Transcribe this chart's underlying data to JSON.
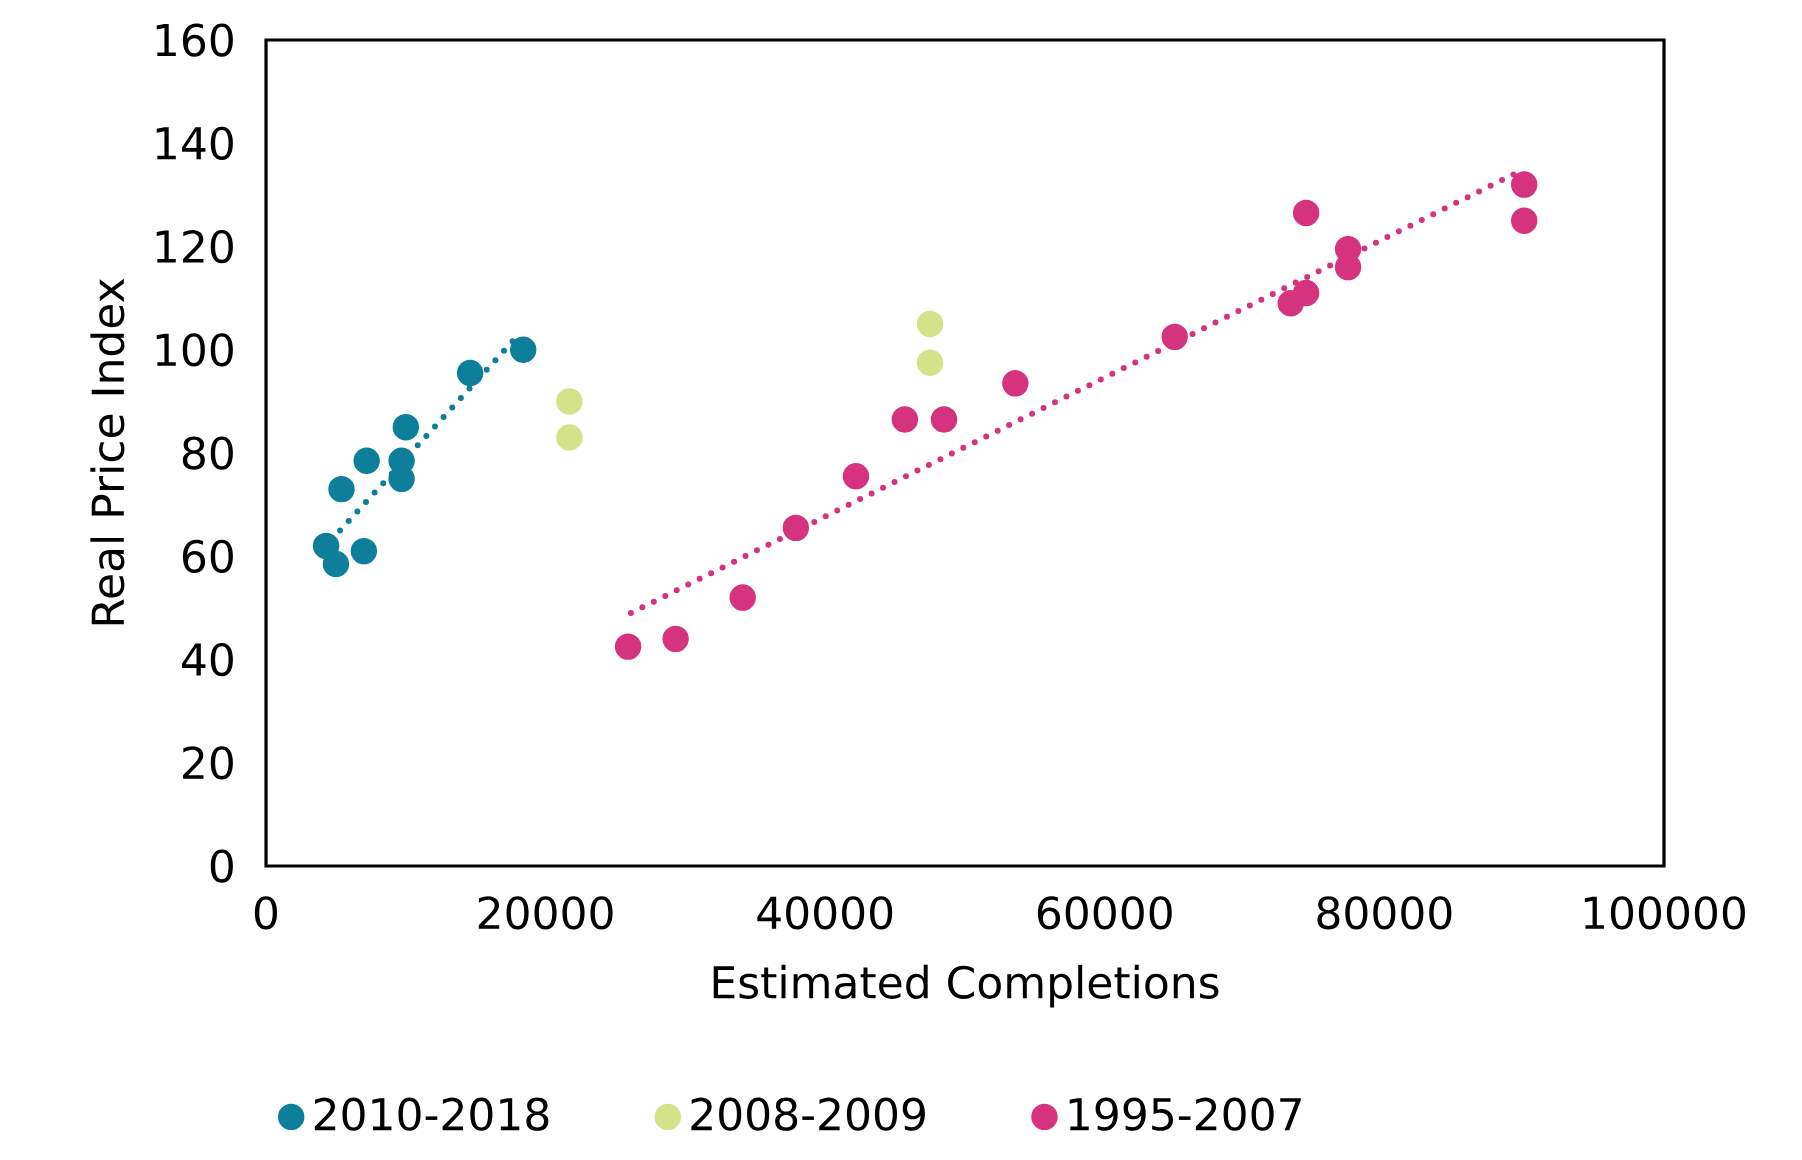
{
  "chart_data": {
    "type": "scatter",
    "xlabel": "Estimated Completions",
    "ylabel": "Real Price Index",
    "xlim": [
      0,
      100000
    ],
    "xticks": [
      0,
      20000,
      40000,
      60000,
      80000,
      100000
    ],
    "ylim": [
      0,
      160
    ],
    "yticks": [
      0,
      20,
      40,
      60,
      80,
      100,
      120,
      140,
      160
    ],
    "grid": false,
    "legend": "bottom",
    "marker": "circle",
    "series": [
      {
        "name": "2010-2018",
        "color": "#0e7f9a",
        "x": [
          4300,
          5000,
          7000,
          5400,
          7200,
          9700,
          9700,
          10000,
          14600,
          18400
        ],
        "values": [
          62,
          58.5,
          61,
          73,
          78.5,
          78.5,
          75,
          85,
          95.5,
          100
        ]
      },
      {
        "name": "2008-2009",
        "color": "#d4e38a",
        "x": [
          21700,
          21700,
          47500,
          47500
        ],
        "values": [
          90,
          83,
          105,
          97.5
        ]
      },
      {
        "name": "1995-2007",
        "color": "#d6337e",
        "x": [
          25900,
          29300,
          34100,
          37900,
          42200,
          45700,
          48500,
          53600,
          65000,
          73300,
          74400,
          74400,
          77400,
          77400,
          90000,
          90000
        ],
        "values": [
          42.5,
          44,
          52,
          65.5,
          75.5,
          86.5,
          86.5,
          93.5,
          102.5,
          109,
          111,
          126.5,
          119.5,
          116,
          132,
          125
        ]
      },
      {
        "type": "line",
        "color": "#0e7f9a",
        "marker": "none",
        "line_style": "dotted",
        "x": [
          5300,
          18100
        ],
        "values": [
          65,
          103
        ]
      },
      {
        "type": "line",
        "color": "#d6337e",
        "marker": "none",
        "line_style": "dotted",
        "x": [
          26100,
          90000
        ],
        "values": [
          49,
          135
        ]
      }
    ]
  }
}
